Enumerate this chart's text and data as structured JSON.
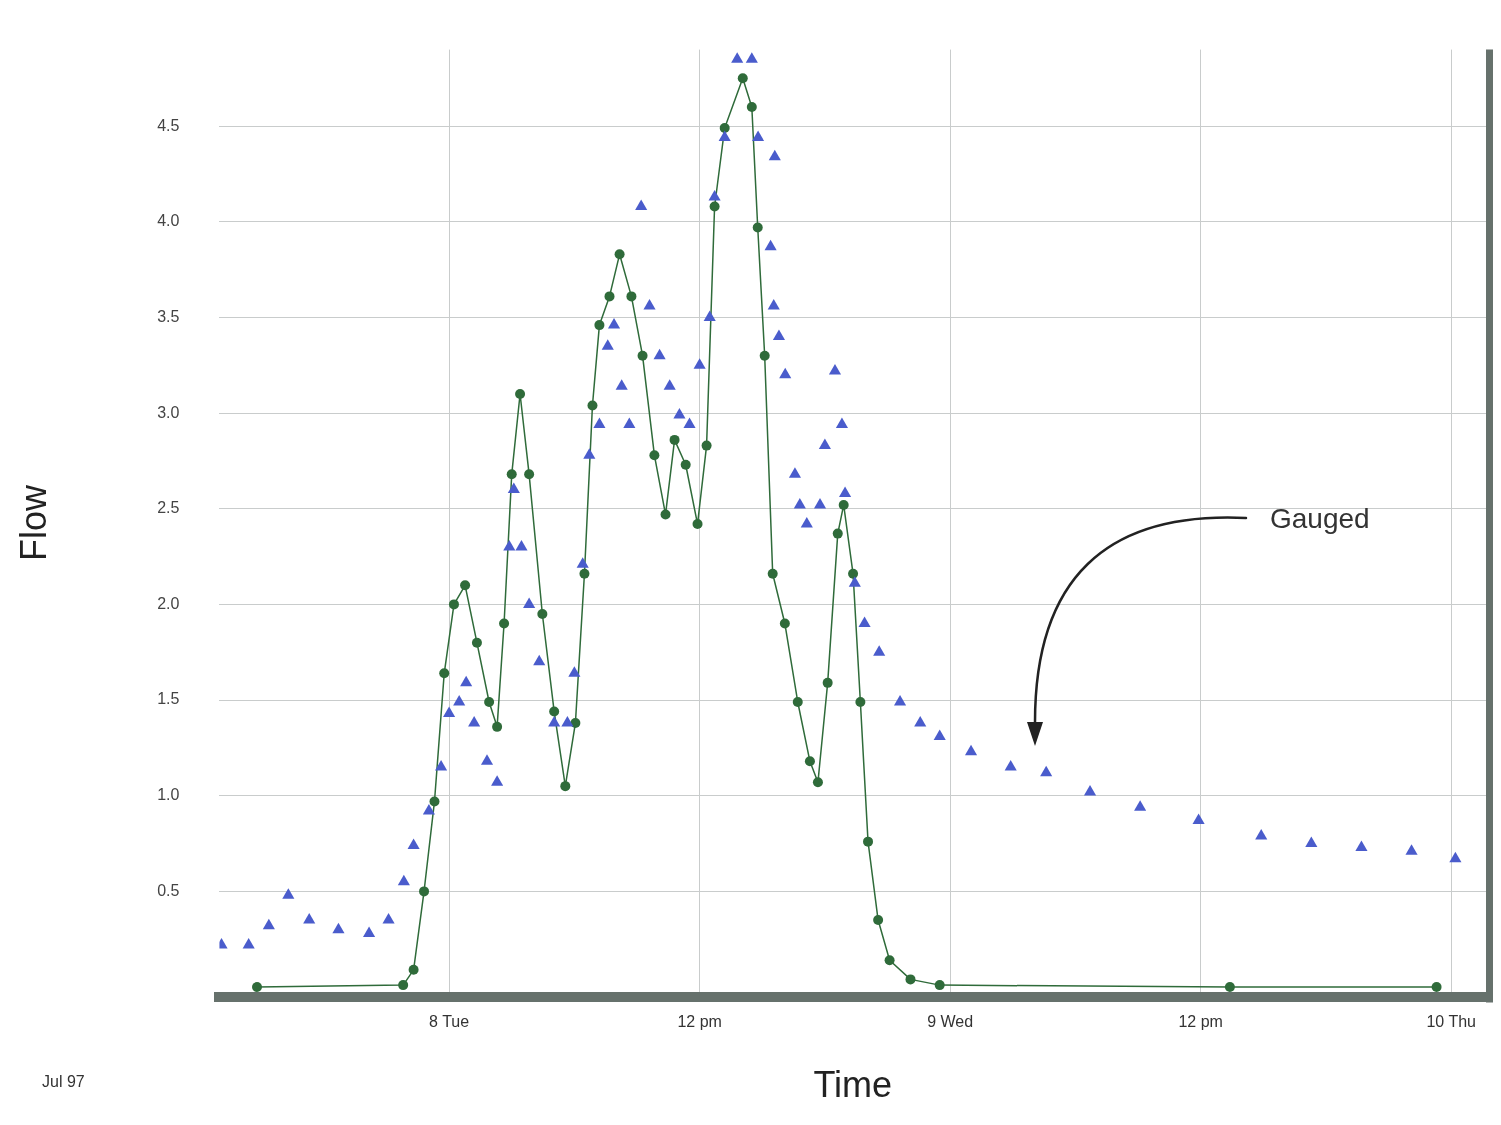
{
  "chart_data": {
    "type": "scatter",
    "xlabel": "Time",
    "ylabel": "Flow",
    "xlim": [
      "--07-07T13:00",
      "--07-10T01:40"
    ],
    "xticks": [
      {
        "value": "--07-08T00:00",
        "label": "8 Tue"
      },
      {
        "value": "--07-08T12:00",
        "label": "12 pm"
      },
      {
        "value": "--07-09T00:00",
        "label": "9 Wed"
      },
      {
        "value": "--07-09T12:00",
        "label": "12 pm"
      },
      {
        "value": "--07-10T00:00",
        "label": "10 Thu"
      }
    ],
    "ylim": [
      -0.05,
      4.9
    ],
    "yticks": [
      0.5,
      {
        "value": 1,
        "label": "1.0"
      },
      1.5,
      {
        "value": 2,
        "label": "2.0"
      },
      2.5,
      {
        "value": 3,
        "label": "3.0"
      },
      3.5,
      {
        "value": 4,
        "label": "4.0"
      },
      4.5
    ],
    "grid": true,
    "legend": false,
    "annotations": [
      "Jul 97",
      "Gauged"
    ],
    "series": [
      {
        "type": "scatter",
        "marker": "triangle",
        "color": "#4a5ccc",
        "x": [
          "--07-07T13:06",
          "--07-07T14:24",
          "--07-07T15:22",
          "--07-07T16:18",
          "--07-07T17:18",
          "--07-07T18:42",
          "--07-07T20:10",
          "--07-07T21:06",
          "--07-07T21:50",
          "--07-07T22:18",
          "--07-07T23:02",
          "--07-07T23:37",
          "--07-08T00:00",
          "--07-08T00:29",
          "--07-08T00:49",
          "--07-08T01:12",
          "--07-08T01:49",
          "--07-08T02:18",
          "--07-08T02:53",
          "--07-08T03:06",
          "--07-08T03:28",
          "--07-08T03:50",
          "--07-08T04:19",
          "--07-08T05:02",
          "--07-08T05:40",
          "--07-08T06:00",
          "--07-08T06:24",
          "--07-08T06:43",
          "--07-08T07:12",
          "--07-08T07:36",
          "--07-08T07:54",
          "--07-08T08:16",
          "--07-08T08:38",
          "--07-08T09:12",
          "--07-08T09:36",
          "--07-08T10:05",
          "--07-08T10:34",
          "--07-08T11:02",
          "--07-08T11:31",
          "--07-08T12:00",
          "--07-08T12:29",
          "--07-08T12:43",
          "--07-08T13:12",
          "--07-08T13:48",
          "--07-08T14:30",
          "--07-08T14:48",
          "--07-08T15:24",
          "--07-08T15:33",
          "--07-08T15:36",
          "--07-08T15:48",
          "--07-08T16:06",
          "--07-08T16:34",
          "--07-08T16:48",
          "--07-08T17:08",
          "--07-08T17:46",
          "--07-08T18:00",
          "--07-08T18:29",
          "--07-08T18:49",
          "--07-08T18:58",
          "--07-08T19:26",
          "--07-08T19:54",
          "--07-08T20:36",
          "--07-08T21:36",
          "--07-08T22:34",
          "--07-08T23:30",
          "--07-09T01:00",
          "--07-09T02:54",
          "--07-09T04:36",
          "--07-09T06:42",
          "--07-09T09:06",
          "--07-09T11:54",
          "--07-09T14:54",
          "--07-09T17:18",
          "--07-09T19:42",
          "--07-09T22:06",
          "--07-10T00:12"
        ],
        "values": [
          0.22,
          0.22,
          0.32,
          0.48,
          0.35,
          0.3,
          0.28,
          0.35,
          0.55,
          0.74,
          0.92,
          1.15,
          1.43,
          1.49,
          1.59,
          1.38,
          1.18,
          1.07,
          2.3,
          2.6,
          2.3,
          2.0,
          1.7,
          1.38,
          1.38,
          1.64,
          2.21,
          2.78,
          2.94,
          3.35,
          3.46,
          3.14,
          2.94,
          4.08,
          3.56,
          3.3,
          3.14,
          2.99,
          2.94,
          3.25,
          3.5,
          4.13,
          4.44,
          4.85,
          4.85,
          4.44,
          3.87,
          3.56,
          4.34,
          3.4,
          3.2,
          2.68,
          2.52,
          2.42,
          2.52,
          2.83,
          3.22,
          2.94,
          2.58,
          2.11,
          1.9,
          1.75,
          1.49,
          1.38,
          1.31,
          1.23,
          1.15,
          1.12,
          1.02,
          0.94,
          0.87,
          0.79,
          0.75,
          0.73,
          0.71,
          0.67
        ]
      },
      {
        "type": "line",
        "marker": "circle",
        "color": "#2f6b3a",
        "x": [
          "--07-07T14:48",
          "--07-07T21:48",
          "--07-07T22:18",
          "--07-07T22:48",
          "--07-07T23:18",
          "--07-07T23:46",
          "--07-08T00:14",
          "--07-08T00:46",
          "--07-08T01:20",
          "--07-08T01:55",
          "--07-08T02:18",
          "--07-08T02:38",
          "--07-08T03:00",
          "--07-08T03:24",
          "--07-08T03:50",
          "--07-08T04:28",
          "--07-08T05:02",
          "--07-08T05:34",
          "--07-08T06:03",
          "--07-08T06:29",
          "--07-08T06:52",
          "--07-08T07:12",
          "--07-08T07:41",
          "--07-08T08:10",
          "--07-08T08:44",
          "--07-08T09:16",
          "--07-08T09:50",
          "--07-08T10:22",
          "--07-08T10:48",
          "--07-08T11:20",
          "--07-08T11:54",
          "--07-08T12:20",
          "--07-08T12:43",
          "--07-08T13:12",
          "--07-08T14:04",
          "--07-08T14:30",
          "--07-08T14:47",
          "--07-08T15:07",
          "--07-08T15:30",
          "--07-08T16:05",
          "--07-08T16:42",
          "--07-08T17:17",
          "--07-08T17:40",
          "--07-08T18:08",
          "--07-08T18:37",
          "--07-08T18:54",
          "--07-08T19:21",
          "--07-08T19:42",
          "--07-08T20:04",
          "--07-08T20:33",
          "--07-08T21:06",
          "--07-08T22:06",
          "--07-08T23:30",
          "--07-09T13:24",
          "--07-09T23:18"
        ],
        "values": [
          0,
          0.01,
          0.09,
          0.5,
          0.97,
          1.64,
          2.0,
          2.1,
          1.8,
          1.49,
          1.36,
          1.9,
          2.68,
          3.1,
          2.68,
          1.95,
          1.44,
          1.05,
          1.38,
          2.16,
          3.04,
          3.46,
          3.61,
          3.83,
          3.61,
          3.3,
          2.78,
          2.47,
          2.86,
          2.73,
          2.42,
          2.83,
          4.08,
          4.49,
          4.75,
          4.6,
          3.97,
          3.3,
          2.16,
          1.9,
          1.49,
          1.18,
          1.07,
          1.59,
          2.37,
          2.52,
          2.16,
          1.49,
          0.76,
          0.35,
          0.14,
          0.04,
          0.01,
          0,
          0
        ]
      }
    ]
  }
}
